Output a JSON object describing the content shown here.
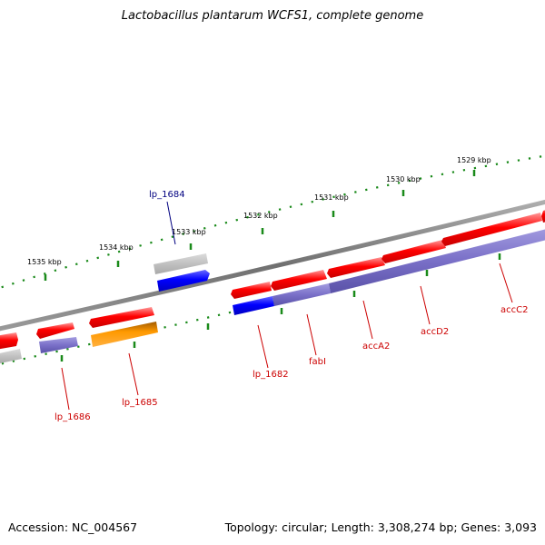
{
  "title": "Lactobacillus plantarum WCFS1, complete genome",
  "footer": {
    "accession": "Accession: NC_004567",
    "topology": "Topology: circular; Length: 3,308,274 bp; Genes: 3,093"
  },
  "colors": {
    "backbone": "#808080",
    "ticks": "#1a8a1a",
    "gene_red": "#ff0000",
    "gene_blue": "#0000ff",
    "gene_gray": "#c0c0c0",
    "gene_orange": "#ff9900",
    "gene_purple": "#7a70c8",
    "label_red": "#cc0000",
    "label_blue": "#000080"
  },
  "scale_labels": [
    "1535 kbp",
    "1534 kbp",
    "1533 kbp",
    "1532 kbp",
    "1531 kbp",
    "1530 kbp",
    "1529 kbp"
  ],
  "gene_labels": [
    "lp_1684",
    "lp_1686",
    "lp_1685",
    "lp_1682",
    "fabI",
    "accA2",
    "accD2",
    "accC2"
  ]
}
